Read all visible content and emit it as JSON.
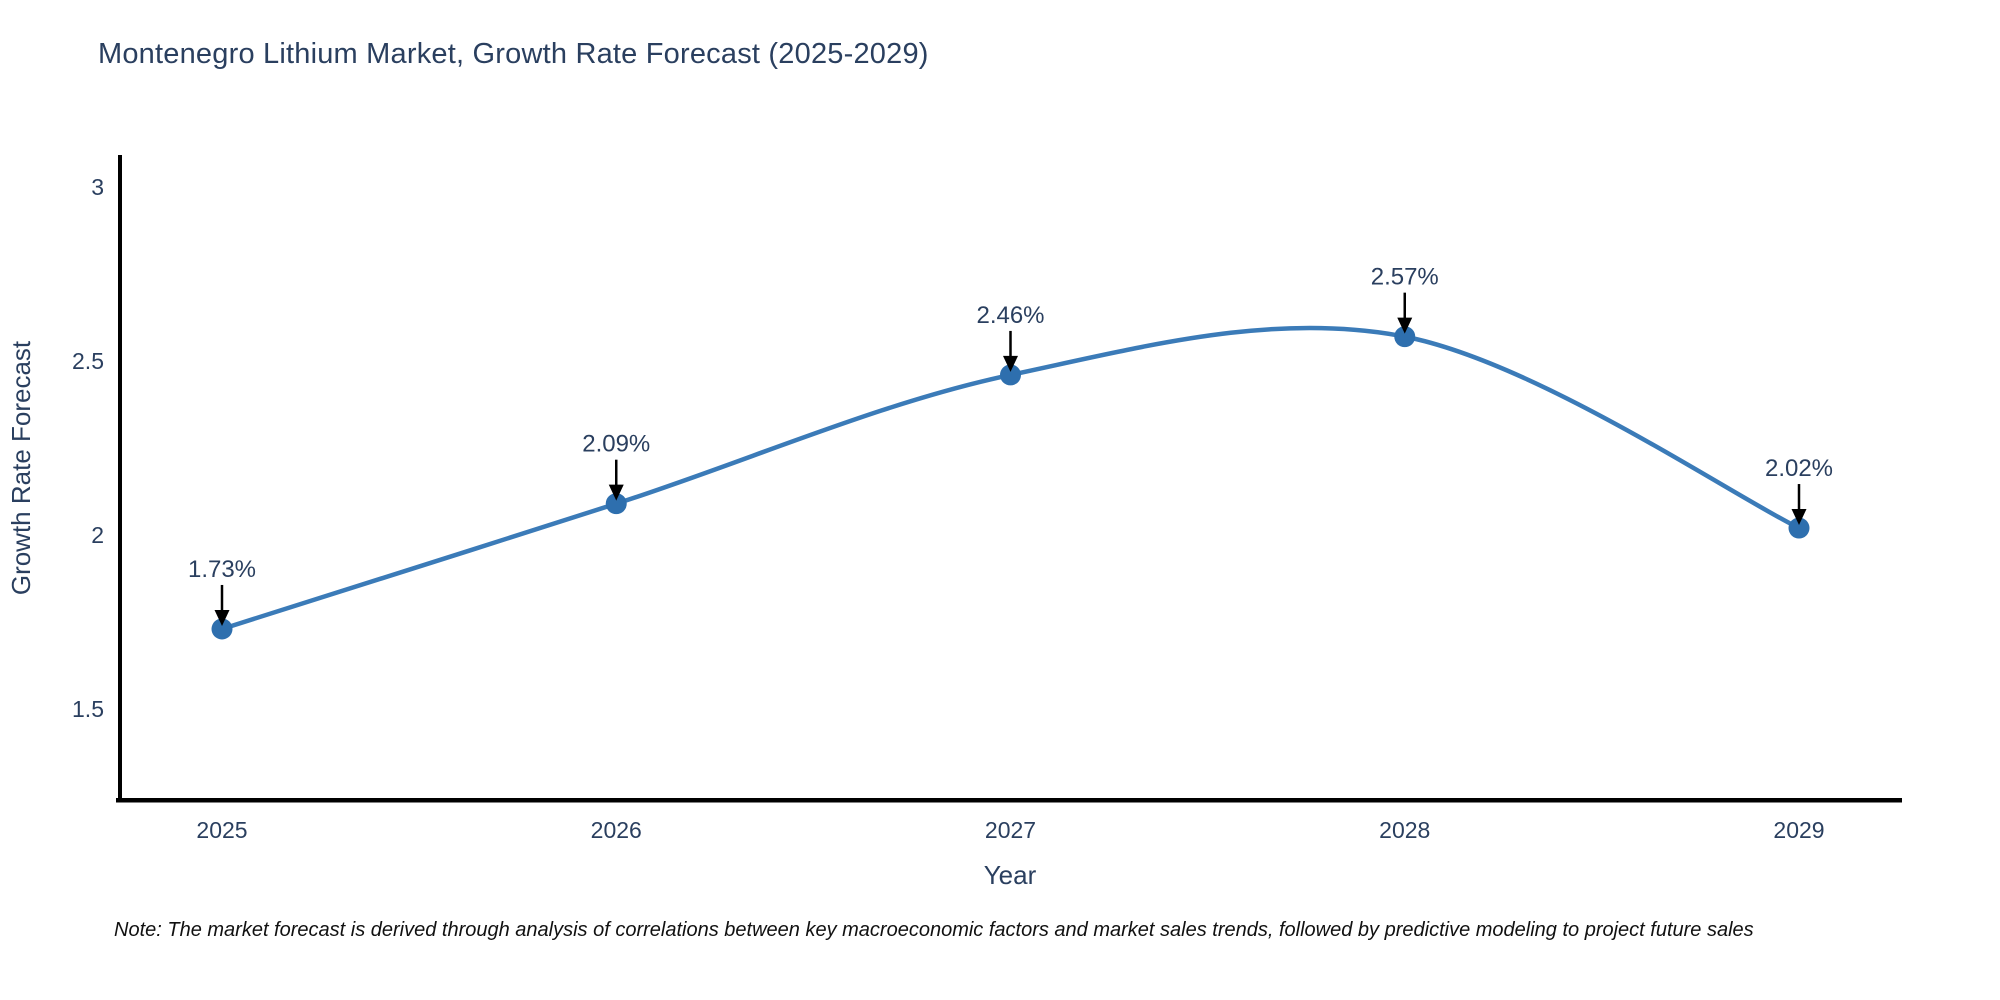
{
  "chart_data": {
    "type": "line",
    "title": "Montenegro Lithium Market, Growth Rate Forecast (2025-2029)",
    "xlabel": "Year",
    "ylabel": "Growth Rate Forecast",
    "categories": [
      "2025",
      "2026",
      "2027",
      "2028",
      "2029"
    ],
    "x": [
      2025,
      2026,
      2027,
      2028,
      2029
    ],
    "values": [
      1.73,
      2.09,
      2.46,
      2.57,
      2.02
    ],
    "point_labels": [
      "1.73%",
      "2.09%",
      "2.46%",
      "2.57%",
      "2.02%"
    ],
    "yticks": [
      3,
      2.5,
      2,
      1.5
    ],
    "ylim": [
      1.24,
      3.09
    ],
    "line_shape": "spline",
    "markers": true,
    "annotations": "arrow-labels",
    "grid": false,
    "legend_position": "none",
    "note": "Note: The market forecast is derived through analysis of correlations between key macroeconomic factors and market sales trends, followed by predictive modeling to project future sales",
    "colors": {
      "line": "#3b7bb8",
      "marker": "#2e6fae",
      "text": "#2a3f5f",
      "annotation_arrow": "#000000",
      "axis": "#000000",
      "note_text": "#111111",
      "background": "#ffffff"
    }
  }
}
